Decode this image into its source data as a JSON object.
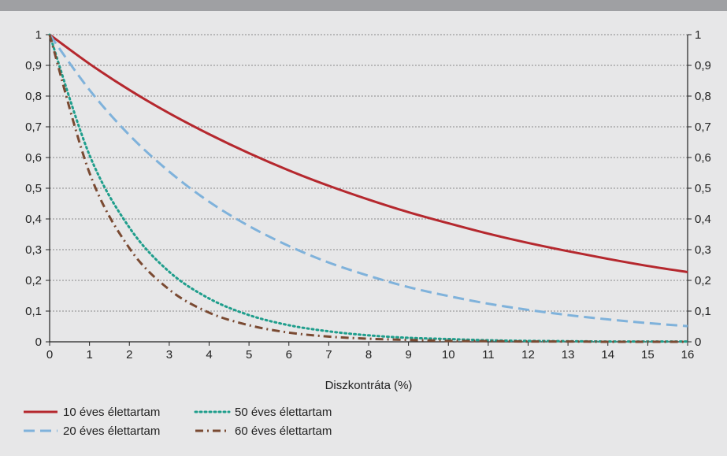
{
  "chart_data": {
    "type": "line",
    "title": "",
    "xlabel": "Diszkontráta (%)",
    "ylabel": "",
    "xlim": [
      0,
      16
    ],
    "ylim": [
      0,
      1
    ],
    "x_ticks": [
      "0",
      "1",
      "2",
      "3",
      "4",
      "5",
      "6",
      "7",
      "8",
      "9",
      "10",
      "11",
      "12",
      "13",
      "14",
      "15",
      "16"
    ],
    "y_ticks": [
      "0",
      "0,1",
      "0,2",
      "0,3",
      "0,4",
      "0,5",
      "0,6",
      "0,7",
      "0,8",
      "0,9",
      "1"
    ],
    "grid": "horizontal dotted",
    "legend_position": "bottom",
    "x": [
      0,
      1,
      2,
      3,
      4,
      5,
      6,
      7,
      8,
      9,
      10,
      11,
      12,
      13,
      14,
      15,
      16
    ],
    "series": [
      {
        "name": "10 éves élettartam",
        "color": "#b5282e",
        "dash": "solid",
        "values": [
          1,
          0.905,
          0.82,
          0.744,
          0.676,
          0.614,
          0.558,
          0.508,
          0.463,
          0.422,
          0.386,
          0.352,
          0.322,
          0.295,
          0.27,
          0.247,
          0.227
        ]
      },
      {
        "name": "20 éves élettartam",
        "color": "#7fb2db",
        "dash": "dash",
        "values": [
          1,
          0.82,
          0.673,
          0.554,
          0.456,
          0.377,
          0.312,
          0.258,
          0.215,
          0.178,
          0.149,
          0.124,
          0.104,
          0.087,
          0.073,
          0.061,
          0.051
        ]
      },
      {
        "name": "50 éves élettartam",
        "color": "#1f9e8c",
        "dash": "dot",
        "values": [
          1,
          0.608,
          0.372,
          0.228,
          0.141,
          0.087,
          0.054,
          0.034,
          0.021,
          0.013,
          0.009,
          0.005,
          0.003,
          0.002,
          0.001,
          0.001,
          0.001
        ]
      },
      {
        "name": "60 éves élettartam",
        "color": "#7a4a32",
        "dash": "dashdot",
        "values": [
          1,
          0.55,
          0.305,
          0.17,
          0.095,
          0.054,
          0.03,
          0.017,
          0.01,
          0.006,
          0.003,
          0.002,
          0.001,
          0.001,
          0.0,
          0.0,
          0.0
        ]
      }
    ]
  }
}
